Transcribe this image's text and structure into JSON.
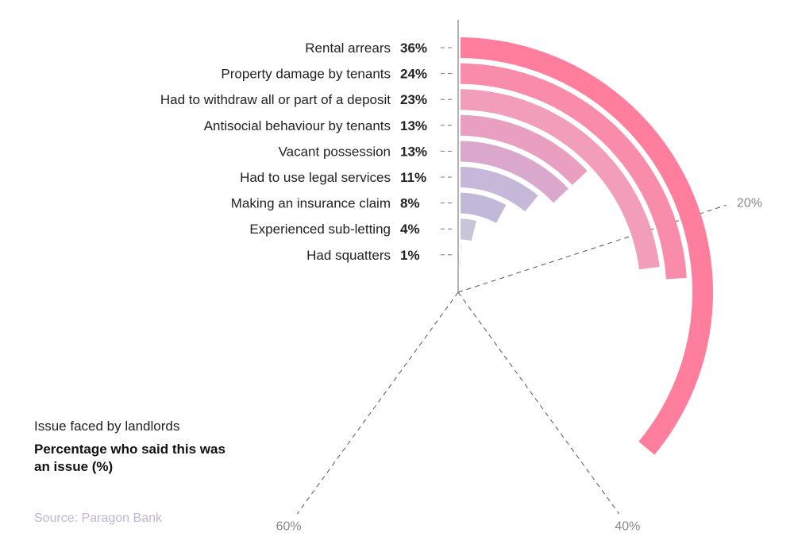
{
  "chart_data": {
    "type": "radial-bar",
    "categories": [
      "Rental arrears",
      "Property damage by tenants",
      "Had to withdraw all or part of a deposit",
      "Antisocial behaviour by tenants",
      "Vacant possession",
      "Had to use legal services",
      "Making an insurance claim",
      "Experienced sub-letting",
      "Had squatters"
    ],
    "values": [
      36,
      24,
      23,
      13,
      13,
      11,
      8,
      4,
      1
    ],
    "value_labels": [
      "36%",
      "24%",
      "23%",
      "13%",
      "13%",
      "11%",
      "8%",
      "4%",
      "1%"
    ],
    "colors": [
      "#ff7d9d",
      "#fa8cab",
      "#f29db9",
      "#e9a0c0",
      "#d9a8cc",
      "#c5b8d8",
      "#c2b8d8",
      "#c8c5d8",
      "#cccccc"
    ],
    "angular_axis": {
      "range": [
        0,
        100
      ],
      "ticks": [
        "20%",
        "40%",
        "60%"
      ],
      "tick_values": [
        20,
        40,
        60
      ],
      "gridlines": "dashed"
    },
    "legend": {
      "category_label": "Issue faced by landlords",
      "value_label": "Percentage who said this was an issue (%)"
    },
    "source": "Source: Paragon Bank"
  }
}
